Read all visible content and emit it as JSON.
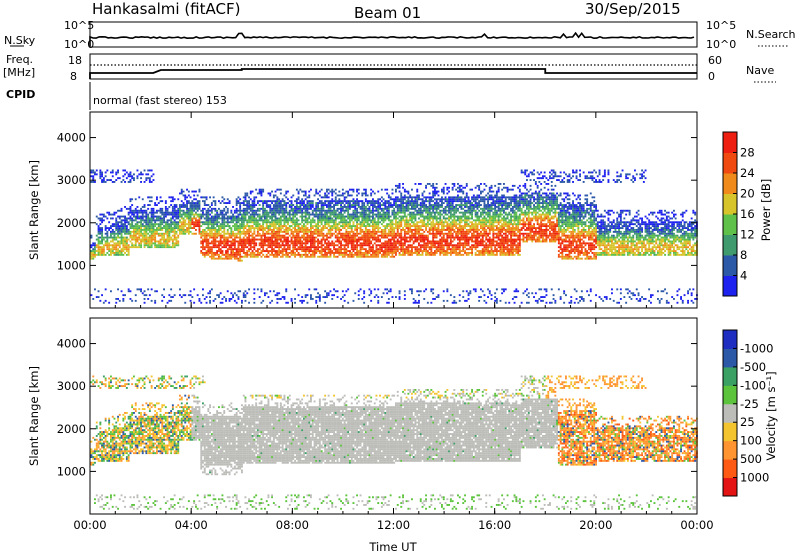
{
  "header": {
    "station": "Hankasalmi (fitACF)",
    "beam": "Beam 01",
    "date": "30/Sep/2015"
  },
  "top_panel": {
    "left_label": "N.Sky",
    "left_ticks": [
      "10^5",
      "10^0"
    ],
    "right_ticks": [
      "10^5",
      "10^0"
    ],
    "right_label": "N.Search"
  },
  "freq_panel": {
    "left_label_1": "Freq.",
    "left_label_2": "[MHz]",
    "left_ticks": [
      "18",
      "8"
    ],
    "right_ticks": [
      "60",
      "0"
    ],
    "right_label": "Nave"
  },
  "cpid_panel": {
    "label": "CPID",
    "text": "normal (fast stereo) 153"
  },
  "colors": {
    "power": [
      "#1e22ee",
      "#2c58a8",
      "#3f9a6e",
      "#5fc04a",
      "#d6c42a",
      "#f08a1a",
      "#f04a10",
      "#ee1e10"
    ],
    "velocity": [
      "#e41414",
      "#ff5a14",
      "#ff9430",
      "#f4c42e",
      "#bcbcb8",
      "#5cc43c",
      "#3aa064",
      "#2c58a8",
      "#1e2ec0"
    ]
  },
  "chart_data": [
    {
      "type": "heatmap",
      "name": "power",
      "ylabel": "Slant Range [km]",
      "xlim": [
        0,
        24
      ],
      "ylim": [
        0,
        4600
      ],
      "yticks": [
        "1000",
        "2000",
        "3000",
        "4000"
      ],
      "xticks": [
        "00:00",
        "04:00",
        "08:00",
        "12:00",
        "16:00",
        "20:00",
        "00:00"
      ],
      "colorbar": {
        "label": "Power [dB]",
        "min": 0,
        "max": 32,
        "ticks": [
          "4",
          "8",
          "12",
          "16",
          "20",
          "24",
          "28"
        ]
      }
    },
    {
      "type": "heatmap",
      "name": "velocity",
      "ylabel": "Slant Range [km]",
      "xlabel": "Time UT",
      "xlim": [
        0,
        24
      ],
      "ylim": [
        0,
        4600
      ],
      "yticks": [
        "1000",
        "2000",
        "3000",
        "4000"
      ],
      "xticks": [
        "00:00",
        "04:00",
        "08:00",
        "12:00",
        "16:00",
        "20:00",
        "00:00"
      ],
      "colorbar": {
        "label": "Velocity [m s⁻¹]",
        "ticks": [
          "1000",
          "500",
          "100",
          "25",
          "-25",
          "-100",
          "-500",
          "-1000"
        ]
      }
    }
  ]
}
